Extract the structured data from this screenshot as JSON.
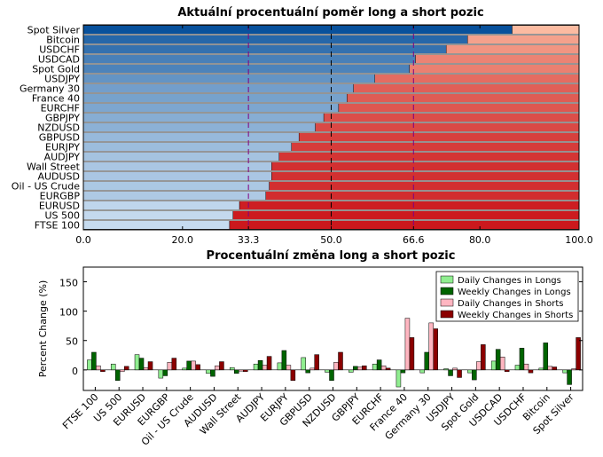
{
  "chart_data": [
    {
      "type": "bar",
      "orientation": "horizontal",
      "stacked": true,
      "title": "Aktuální procentuální poměr long a short pozic",
      "categories": [
        "Spot Silver",
        "Bitcoin",
        "USDCHF",
        "USDCAD",
        "Spot Gold",
        "USDJPY",
        "Germany 30",
        "France 40",
        "EURCHF",
        "GBPJPY",
        "NZDUSD",
        "GBPUSD",
        "EURJPY",
        "AUDJPY",
        "Wall Street",
        "AUDUSD",
        "Oil - US Crude",
        "EURGBP",
        "EURUSD",
        "US 500",
        "FTSE 100"
      ],
      "long_values": [
        86.5,
        77.5,
        73.2,
        67.0,
        65.8,
        58.8,
        54.5,
        53.2,
        51.5,
        48.5,
        46.8,
        43.5,
        42.0,
        39.5,
        38.0,
        38.0,
        37.5,
        36.8,
        31.5,
        30.2,
        29.5
      ],
      "xlim": [
        0,
        100
      ],
      "xticks": [
        0.0,
        20.0,
        33.3,
        50.0,
        66.6,
        80.0,
        100.0
      ],
      "xtick_labels": [
        "0.0",
        "20.0",
        "33.3",
        "50.0",
        "66.6",
        "80.0",
        "100.0"
      ],
      "highlighted_ticks": [
        "33.3",
        "66.6"
      ],
      "reference_lines": [
        33.3,
        50.0,
        66.6
      ],
      "colors": {
        "long_scale": [
          "#c6dbef",
          "#08519c"
        ],
        "short_scale": [
          "#fcbba1",
          "#cb181d"
        ],
        "highlight_tick": "#800080",
        "reference_line": "#800080"
      }
    },
    {
      "type": "bar",
      "grouped": true,
      "title": "Procentuální změna long a short pozic",
      "ylabel": "Percent Change (%)",
      "categories": [
        "FTSE 100",
        "US 500",
        "EURUSD",
        "EURGBP",
        "Oil - US Crude",
        "AUDUSD",
        "Wall Street",
        "AUDJPY",
        "EURJPY",
        "GBPUSD",
        "NZDUSD",
        "GBPJPY",
        "EURCHF",
        "France 40",
        "Germany 30",
        "USDJPY",
        "Spot Gold",
        "USDCAD",
        "USDCHF",
        "Bitcoin",
        "Spot Silver"
      ],
      "series": [
        {
          "name": "Daily Changes in Longs",
          "color": "#90ee90",
          "values": [
            17,
            10,
            26,
            -14,
            3,
            -6,
            4,
            10,
            12,
            21,
            -4,
            -4,
            10,
            -29,
            -5,
            2,
            -5,
            15,
            8,
            3,
            -5
          ]
        },
        {
          "name": "Weekly Changes in Longs",
          "color": "#006400",
          "values": [
            30,
            -18,
            20,
            -10,
            15,
            -11,
            -6,
            16,
            33,
            -5,
            -18,
            6,
            17,
            -5,
            30,
            -10,
            -17,
            35,
            37,
            46,
            -25
          ]
        },
        {
          "name": "Daily Changes in Shorts",
          "color": "#ffb6c1",
          "values": [
            7,
            -3,
            4,
            13,
            15,
            7,
            -2,
            8,
            8,
            3,
            13,
            5,
            7,
            88,
            80,
            3,
            14,
            22,
            10,
            6,
            2
          ]
        },
        {
          "name": "Weekly Changes in Shorts",
          "color": "#8b0000",
          "values": [
            -3,
            6,
            14,
            20,
            9,
            14,
            -3,
            23,
            -18,
            26,
            30,
            7,
            3,
            55,
            70,
            -13,
            43,
            -3,
            -5,
            5,
            55
          ]
        }
      ],
      "ylim": [
        -35,
        175
      ],
      "yticks": [
        0,
        50,
        100,
        150
      ],
      "legend_position": "top-right",
      "grid": false
    }
  ]
}
